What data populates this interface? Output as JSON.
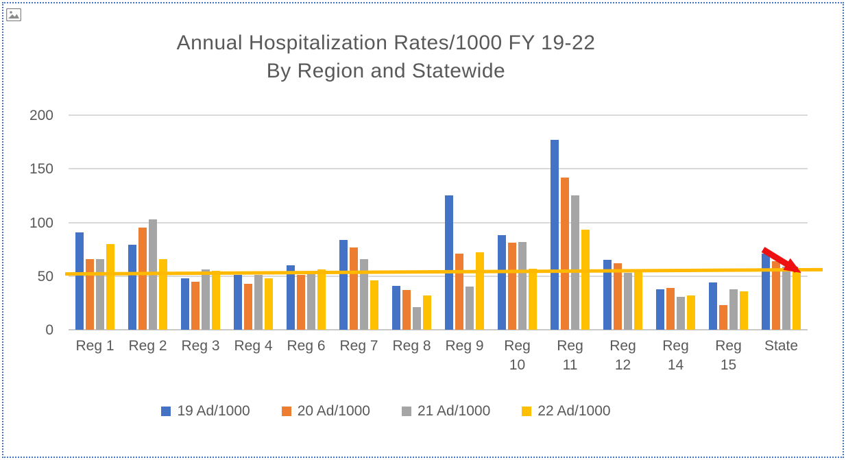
{
  "figure": {
    "kind": "embedded-chart-image",
    "selection_border_color": "#4472C4",
    "placeholder_icon": "picture-icon"
  },
  "chart_data": {
    "type": "bar",
    "title_line1": "Annual Hospitalization Rates/1000 FY 19-22",
    "title_line2": "By Region and Statewide",
    "categories": [
      "Reg 1",
      "Reg 2",
      "Reg 3",
      "Reg 4",
      "Reg 6",
      "Reg 7",
      "Reg 8",
      "Reg 9",
      "Reg\n10",
      "Reg\n11",
      "Reg\n12",
      "Reg\n14",
      "Reg\n15",
      "State"
    ],
    "series": [
      {
        "name": "19 Ad/1000",
        "color": "#4472C4",
        "values": [
          91,
          79,
          48,
          51,
          60,
          84,
          41,
          125,
          88,
          177,
          65,
          38,
          44,
          71
        ]
      },
      {
        "name": "20 Ad/1000",
        "color": "#ED7D31",
        "values": [
          66,
          95,
          45,
          43,
          51,
          77,
          37,
          71,
          81,
          142,
          62,
          39,
          23,
          64
        ]
      },
      {
        "name": "21 Ad/1000",
        "color": "#A5A5A5",
        "values": [
          66,
          103,
          56,
          51,
          52,
          66,
          21,
          40,
          82,
          125,
          53,
          31,
          38,
          59
        ]
      },
      {
        "name": "22 Ad/1000",
        "color": "#FFC000",
        "values": [
          80,
          66,
          55,
          48,
          56,
          46,
          32,
          72,
          57,
          93,
          55,
          32,
          36,
          56
        ]
      }
    ],
    "ylim": [
      0,
      200
    ],
    "y_ticks": [
      0,
      50,
      100,
      150,
      200
    ],
    "grid": true,
    "legend_position": "bottom",
    "reference_line": {
      "color": "#FFB900",
      "start_value": 52,
      "end_value": 56
    },
    "annotation": {
      "shape": "arrow",
      "direction": "down-right",
      "color": "#EE1111",
      "location": "State"
    }
  }
}
